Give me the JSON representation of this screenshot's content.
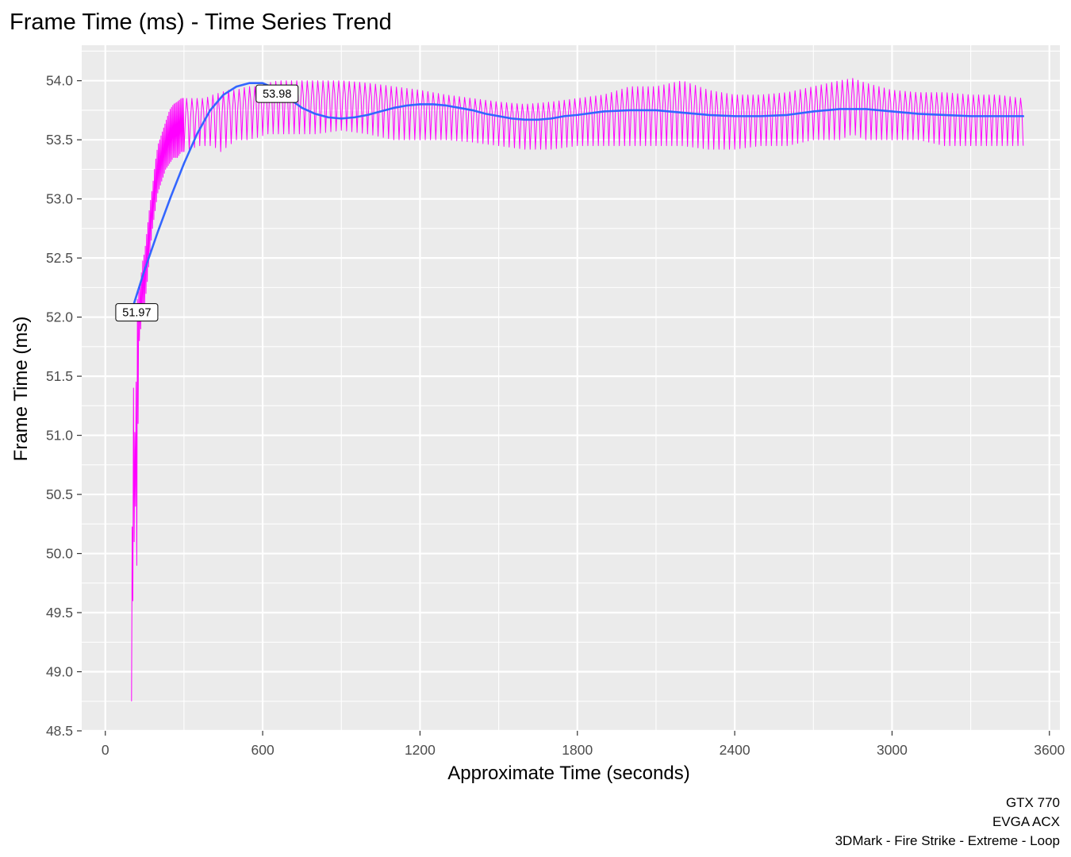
{
  "chart_data": {
    "type": "line",
    "title": "Frame Time (ms) - Time Series Trend",
    "xlabel": "Approximate Time (seconds)",
    "ylabel": "Frame Time (ms)",
    "xlim": [
      -90,
      3640
    ],
    "ylim": [
      48.5,
      54.3
    ],
    "x_ticks": [
      0,
      600,
      1200,
      1800,
      2400,
      3000,
      3600
    ],
    "x_tick_labels": [
      "0",
      "600",
      "1200",
      "1800",
      "2400",
      "3000",
      "3600"
    ],
    "y_ticks": [
      48.5,
      49.0,
      49.5,
      50.0,
      50.5,
      51.0,
      51.5,
      52.0,
      52.5,
      53.0,
      53.5,
      54.0
    ],
    "y_tick_labels": [
      "48.5",
      "49.0",
      "49.5",
      "50.0",
      "50.5",
      "51.0",
      "51.5",
      "52.0",
      "52.5",
      "53.0",
      "53.5",
      "54.0"
    ],
    "grid": true,
    "background": "#ebebeb",
    "caption": [
      "GTX 770",
      "EVGA ACX",
      "3DMark - Fire Strike - Extreme - Loop"
    ],
    "series": [
      {
        "color": "#ff00ff",
        "oscillation_period_s": 20,
        "x": [
          100,
          105,
          110,
          115,
          120,
          125,
          130,
          135,
          140,
          150,
          160,
          170,
          180,
          190,
          200,
          215,
          230,
          245,
          260,
          275,
          290,
          310,
          330,
          350,
          380,
          410,
          440,
          470,
          500,
          540,
          580,
          620,
          660,
          700,
          800,
          900,
          1000,
          1100,
          1200,
          1300,
          1400,
          1500,
          1600,
          1700,
          1800,
          1900,
          2000,
          2100,
          2200,
          2300,
          2400,
          2500,
          2600,
          2700,
          2800,
          2850,
          2900,
          3000,
          3100,
          3200,
          3300,
          3400,
          3500
        ],
        "low": [
          48.75,
          49.6,
          50.1,
          50.4,
          49.9,
          51.1,
          51.8,
          51.9,
          52.0,
          52.1,
          52.3,
          52.55,
          52.75,
          52.9,
          53.05,
          53.15,
          53.25,
          53.3,
          53.35,
          53.35,
          53.4,
          53.4,
          53.42,
          53.45,
          53.45,
          53.45,
          53.4,
          53.45,
          53.5,
          53.5,
          53.52,
          53.55,
          53.55,
          53.55,
          53.55,
          53.58,
          53.55,
          53.5,
          53.5,
          53.5,
          53.48,
          53.45,
          53.42,
          53.42,
          53.45,
          53.45,
          53.45,
          53.45,
          53.45,
          53.42,
          53.42,
          53.45,
          53.45,
          53.5,
          53.5,
          53.55,
          53.5,
          53.5,
          53.5,
          53.45,
          53.45,
          53.45,
          53.45
        ],
        "high": [
          48.9,
          51.55,
          51.25,
          50.8,
          52.1,
          52.2,
          52.25,
          52.3,
          52.45,
          52.55,
          52.75,
          52.95,
          53.1,
          53.3,
          53.45,
          53.55,
          53.65,
          53.75,
          53.8,
          53.82,
          53.85,
          53.85,
          53.85,
          53.85,
          53.85,
          53.88,
          53.9,
          53.92,
          53.92,
          53.95,
          53.95,
          53.98,
          54.0,
          54.0,
          54.0,
          54.0,
          53.98,
          53.95,
          53.92,
          53.88,
          53.85,
          53.82,
          53.8,
          53.82,
          53.85,
          53.88,
          53.95,
          53.95,
          54.0,
          53.92,
          53.88,
          53.88,
          53.9,
          53.95,
          54.0,
          54.02,
          53.98,
          53.92,
          53.9,
          53.9,
          53.88,
          53.88,
          53.85
        ]
      },
      {
        "color": "#3366ff",
        "x": [
          110,
          150,
          200,
          250,
          300,
          350,
          400,
          450,
          500,
          550,
          600,
          650,
          700,
          750,
          800,
          850,
          900,
          950,
          1000,
          1050,
          1100,
          1150,
          1200,
          1250,
          1300,
          1350,
          1400,
          1450,
          1500,
          1550,
          1600,
          1650,
          1700,
          1750,
          1800,
          1900,
          2000,
          2100,
          2200,
          2300,
          2400,
          2500,
          2600,
          2700,
          2800,
          2900,
          3000,
          3100,
          3200,
          3300,
          3400,
          3500
        ],
        "y": [
          52.12,
          52.4,
          52.72,
          53.02,
          53.3,
          53.55,
          53.75,
          53.88,
          53.95,
          53.98,
          53.98,
          53.93,
          53.85,
          53.77,
          53.72,
          53.69,
          53.68,
          53.69,
          53.71,
          53.74,
          53.77,
          53.79,
          53.8,
          53.8,
          53.79,
          53.77,
          53.75,
          53.72,
          53.7,
          53.68,
          53.67,
          53.67,
          53.68,
          53.7,
          53.71,
          53.74,
          53.75,
          53.75,
          53.73,
          53.71,
          53.7,
          53.7,
          53.71,
          53.74,
          53.76,
          53.76,
          53.74,
          53.72,
          53.71,
          53.7,
          53.7,
          53.7
        ]
      }
    ],
    "annotations": [
      {
        "label": "51.97",
        "x": 120,
        "y": 52.04
      },
      {
        "label": "53.98",
        "x": 655,
        "y": 53.89
      }
    ]
  }
}
